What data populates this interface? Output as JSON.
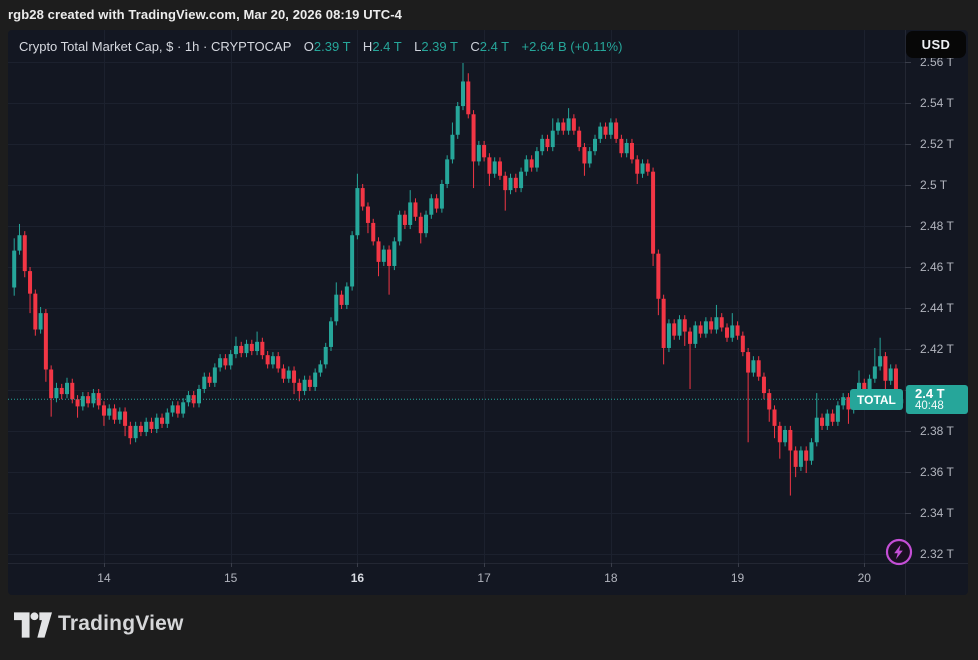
{
  "attribution": "rgb28 created with TradingView.com, Mar 20, 2026 08:19 UTC-4",
  "currency_button": "USD",
  "legend": {
    "title": "Crypto Total Market Cap, $ · 1h · CRYPTOCAP",
    "ohlc": [
      {
        "label": "O",
        "value": "2.39 T"
      },
      {
        "label": "H",
        "value": "2.4 T"
      },
      {
        "label": "L",
        "value": "2.39 T"
      },
      {
        "label": "C",
        "value": "2.4 T"
      }
    ],
    "change": "+2.64 B (+0.11%)"
  },
  "price_label": {
    "symbol": "TOTAL",
    "price": "2.4 T",
    "countdown": "40:48"
  },
  "footer": {
    "brand": "TradingView"
  },
  "colors": {
    "up": "#26a69a",
    "down": "#f23645",
    "grid": "#1c212e",
    "axis_text": "#b2b5be",
    "text_bright": "#d1d4dc",
    "badge": "#26a69a",
    "flash": "#c44fd6",
    "panel_bg": "#131722",
    "frame_bg": "#1d1d1d",
    "separator": "#232733"
  },
  "chart_data": {
    "type": "candlestick",
    "title": "Crypto Total Market Cap",
    "symbol": "CRYPTOCAP:TOTAL",
    "interval": "1h",
    "units": "trillions USD",
    "current_price": 2.3955,
    "current_price_label": "2.4 T",
    "countdown": "40:48",
    "ylim": [
      2.315,
      2.575
    ],
    "grid": true,
    "y_levels": [
      {
        "price": 2.56,
        "label": "2.56 T"
      },
      {
        "price": 2.54,
        "label": "2.54 T"
      },
      {
        "price": 2.52,
        "label": "2.52 T"
      },
      {
        "price": 2.5,
        "label": "2.5 T"
      },
      {
        "price": 2.48,
        "label": "2.48 T"
      },
      {
        "price": 2.46,
        "label": "2.46 T"
      },
      {
        "price": 2.44,
        "label": "2.44 T"
      },
      {
        "price": 2.42,
        "label": "2.42 T"
      },
      {
        "price": 2.4,
        "label": "2.4 T"
      },
      {
        "price": 2.38,
        "label": "2.38 T"
      },
      {
        "price": 2.36,
        "label": "2.36 T"
      },
      {
        "price": 2.34,
        "label": "2.34 T"
      },
      {
        "price": 2.32,
        "label": "2.32 T"
      }
    ],
    "x_ticks": [
      {
        "t": 17,
        "label": "14",
        "bold": false
      },
      {
        "t": 41,
        "label": "15",
        "bold": false
      },
      {
        "t": 65,
        "label": "16",
        "bold": true
      },
      {
        "t": 89,
        "label": "17",
        "bold": false
      },
      {
        "t": 113,
        "label": "18",
        "bold": false
      },
      {
        "t": 137,
        "label": "19",
        "bold": false
      },
      {
        "t": 161,
        "label": "20",
        "bold": false
      }
    ],
    "candles": [
      [
        2.45,
        2.474,
        2.446,
        2.468
      ],
      [
        2.468,
        2.481,
        2.466,
        2.4755
      ],
      [
        2.4755,
        2.4775,
        2.455,
        2.458
      ],
      [
        2.458,
        2.46,
        2.4375,
        2.447
      ],
      [
        2.447,
        2.449,
        2.4265,
        2.4295
      ],
      [
        2.4295,
        2.4405,
        2.4275,
        2.4375
      ],
      [
        2.4375,
        2.4395,
        2.404,
        2.41
      ],
      [
        2.41,
        2.412,
        2.387,
        2.396
      ],
      [
        2.396,
        2.4035,
        2.394,
        2.401
      ],
      [
        2.401,
        2.403,
        2.3955,
        2.398
      ],
      [
        2.398,
        2.406,
        2.396,
        2.4035
      ],
      [
        2.4035,
        2.4055,
        2.3935,
        2.3955
      ],
      [
        2.3955,
        2.3975,
        2.3865,
        2.392
      ],
      [
        2.392,
        2.399,
        2.39,
        2.397
      ],
      [
        2.397,
        2.399,
        2.3915,
        2.3935
      ],
      [
        2.3935,
        2.4005,
        2.3915,
        2.3985
      ],
      [
        2.3985,
        2.4005,
        2.3905,
        2.3925
      ],
      [
        2.3925,
        2.3945,
        2.3825,
        2.3875
      ],
      [
        2.3875,
        2.393,
        2.3855,
        2.391
      ],
      [
        2.391,
        2.393,
        2.3835,
        2.3855
      ],
      [
        2.3855,
        2.3915,
        2.3835,
        2.3895
      ],
      [
        2.3895,
        2.3915,
        2.3775,
        2.3825
      ],
      [
        2.3825,
        2.3845,
        2.3735,
        2.3765
      ],
      [
        2.3765,
        2.3845,
        2.3745,
        2.3825
      ],
      [
        2.3825,
        2.3845,
        2.3775,
        2.3795
      ],
      [
        2.3795,
        2.3865,
        2.3775,
        2.3845
      ],
      [
        2.3845,
        2.3865,
        2.379,
        2.381
      ],
      [
        2.381,
        2.3885,
        2.379,
        2.3865
      ],
      [
        2.3865,
        2.3885,
        2.3815,
        2.3835
      ],
      [
        2.3835,
        2.391,
        2.3815,
        2.389
      ],
      [
        2.389,
        2.3945,
        2.387,
        2.3925
      ],
      [
        2.3925,
        2.3945,
        2.3865,
        2.3885
      ],
      [
        2.3885,
        2.396,
        2.3865,
        2.394
      ],
      [
        2.394,
        2.3995,
        2.392,
        2.3975
      ],
      [
        2.3975,
        2.3995,
        2.3915,
        2.3935
      ],
      [
        2.3935,
        2.4025,
        2.3915,
        2.4005
      ],
      [
        2.4005,
        2.4085,
        2.3985,
        2.4065
      ],
      [
        2.4065,
        2.4085,
        2.4015,
        2.4035
      ],
      [
        2.4035,
        2.413,
        2.4015,
        2.411
      ],
      [
        2.411,
        2.4175,
        2.409,
        2.4155
      ],
      [
        2.4155,
        2.4175,
        2.41,
        2.412
      ],
      [
        2.412,
        2.4195,
        2.41,
        2.4175
      ],
      [
        2.4175,
        2.426,
        2.4155,
        2.4215
      ],
      [
        2.4215,
        2.4235,
        2.416,
        2.418
      ],
      [
        2.418,
        2.4245,
        2.416,
        2.4225
      ],
      [
        2.4225,
        2.4245,
        2.417,
        2.419
      ],
      [
        2.419,
        2.4285,
        2.417,
        2.4235
      ],
      [
        2.4235,
        2.4255,
        2.415,
        2.417
      ],
      [
        2.417,
        2.419,
        2.4105,
        2.4125
      ],
      [
        2.4125,
        2.4185,
        2.4105,
        2.4165
      ],
      [
        2.4165,
        2.4185,
        2.4085,
        2.4105
      ],
      [
        2.4105,
        2.4125,
        2.4035,
        2.4055
      ],
      [
        2.4055,
        2.4115,
        2.4035,
        2.4095
      ],
      [
        2.4095,
        2.4115,
        2.398,
        2.4035
      ],
      [
        2.4035,
        2.4055,
        2.3945,
        2.3995
      ],
      [
        2.3995,
        2.407,
        2.3975,
        2.405
      ],
      [
        2.405,
        2.407,
        2.3995,
        2.4015
      ],
      [
        2.4015,
        2.4105,
        2.3995,
        2.4085
      ],
      [
        2.4085,
        2.4145,
        2.4065,
        2.4125
      ],
      [
        2.4125,
        2.423,
        2.4105,
        2.421
      ],
      [
        2.421,
        2.4355,
        2.419,
        2.4335
      ],
      [
        2.4335,
        2.4525,
        2.4315,
        2.4465
      ],
      [
        2.4465,
        2.4485,
        2.4395,
        2.4415
      ],
      [
        2.4415,
        2.4525,
        2.4395,
        2.4505
      ],
      [
        2.4505,
        2.4775,
        2.4485,
        2.4755
      ],
      [
        2.4755,
        2.5055,
        2.4735,
        2.4985
      ],
      [
        2.4985,
        2.5005,
        2.4875,
        2.4895
      ],
      [
        2.4895,
        2.4915,
        2.4765,
        2.4815
      ],
      [
        2.4815,
        2.4835,
        2.4705,
        2.4725
      ],
      [
        2.4725,
        2.4745,
        2.4555,
        2.4625
      ],
      [
        2.4625,
        2.4705,
        2.4605,
        2.4685
      ],
      [
        2.4685,
        2.4705,
        2.4465,
        2.4605
      ],
      [
        2.4605,
        2.4745,
        2.4585,
        2.4725
      ],
      [
        2.4725,
        2.4875,
        2.4705,
        2.4855
      ],
      [
        2.4855,
        2.4875,
        2.4785,
        2.4805
      ],
      [
        2.4805,
        2.4975,
        2.4785,
        2.4915
      ],
      [
        2.4915,
        2.4935,
        2.4825,
        2.4845
      ],
      [
        2.4845,
        2.4865,
        2.4715,
        2.4765
      ],
      [
        2.4765,
        2.4875,
        2.4745,
        2.4855
      ],
      [
        2.4855,
        2.4955,
        2.4835,
        2.4935
      ],
      [
        2.4935,
        2.4955,
        2.4865,
        2.4885
      ],
      [
        2.4885,
        2.5025,
        2.4865,
        2.5005
      ],
      [
        2.5005,
        2.5145,
        2.4985,
        2.5125
      ],
      [
        2.5125,
        2.5305,
        2.5105,
        2.5245
      ],
      [
        2.5245,
        2.5405,
        2.5225,
        2.5385
      ],
      [
        2.5385,
        2.5595,
        2.5365,
        2.5505
      ],
      [
        2.5505,
        2.5545,
        2.5325,
        2.5345
      ],
      [
        2.5345,
        2.5365,
        2.4985,
        2.5115
      ],
      [
        2.5115,
        2.5215,
        2.5095,
        2.5195
      ],
      [
        2.5195,
        2.5215,
        2.5115,
        2.5135
      ],
      [
        2.5135,
        2.5155,
        2.4995,
        2.5055
      ],
      [
        2.5055,
        2.5135,
        2.5035,
        2.5115
      ],
      [
        2.5115,
        2.5135,
        2.5025,
        2.5045
      ],
      [
        2.5045,
        2.5065,
        2.4875,
        2.4975
      ],
      [
        2.4975,
        2.5055,
        2.4955,
        2.5035
      ],
      [
        2.5035,
        2.5055,
        2.4965,
        2.4985
      ],
      [
        2.4985,
        2.5085,
        2.4965,
        2.5065
      ],
      [
        2.5065,
        2.5145,
        2.5045,
        2.5125
      ],
      [
        2.5125,
        2.5145,
        2.5065,
        2.5085
      ],
      [
        2.5085,
        2.5185,
        2.5065,
        2.5165
      ],
      [
        2.5165,
        2.5245,
        2.5145,
        2.5225
      ],
      [
        2.5225,
        2.5245,
        2.5165,
        2.5185
      ],
      [
        2.5185,
        2.5325,
        2.5165,
        2.5265
      ],
      [
        2.5265,
        2.5325,
        2.5245,
        2.5305
      ],
      [
        2.5305,
        2.5325,
        2.5245,
        2.5265
      ],
      [
        2.5265,
        2.5375,
        2.5245,
        2.5325
      ],
      [
        2.5325,
        2.5345,
        2.5245,
        2.5265
      ],
      [
        2.5265,
        2.5285,
        2.5165,
        2.5185
      ],
      [
        2.5185,
        2.5205,
        2.5045,
        2.5105
      ],
      [
        2.5105,
        2.5185,
        2.5085,
        2.5165
      ],
      [
        2.5165,
        2.5245,
        2.5145,
        2.5225
      ],
      [
        2.5225,
        2.5305,
        2.5205,
        2.5285
      ],
      [
        2.5285,
        2.5305,
        2.5225,
        2.5245
      ],
      [
        2.5245,
        2.5325,
        2.5225,
        2.5305
      ],
      [
        2.5305,
        2.5325,
        2.5205,
        2.5225
      ],
      [
        2.5225,
        2.5245,
        2.5135,
        2.5155
      ],
      [
        2.5155,
        2.5225,
        2.5135,
        2.5205
      ],
      [
        2.5205,
        2.5225,
        2.5105,
        2.5125
      ],
      [
        2.5125,
        2.5145,
        2.5005,
        2.5055
      ],
      [
        2.5055,
        2.5125,
        2.5035,
        2.5105
      ],
      [
        2.5105,
        2.5125,
        2.5045,
        2.5065
      ],
      [
        2.5065,
        2.5085,
        2.4605,
        2.4665
      ],
      [
        2.4665,
        2.4685,
        2.4365,
        2.4445
      ],
      [
        2.4445,
        2.4465,
        2.4125,
        2.4205
      ],
      [
        2.4205,
        2.4345,
        2.4185,
        2.4325
      ],
      [
        2.4325,
        2.4345,
        2.4245,
        2.4265
      ],
      [
        2.4265,
        2.4365,
        2.4245,
        2.4345
      ],
      [
        2.4345,
        2.4365,
        2.4215,
        2.4285
      ],
      [
        2.4285,
        2.4305,
        2.4005,
        2.4225
      ],
      [
        2.4225,
        2.4335,
        2.4205,
        2.4315
      ],
      [
        2.4315,
        2.4335,
        2.4255,
        2.4275
      ],
      [
        2.4275,
        2.4355,
        2.4255,
        2.4335
      ],
      [
        2.4335,
        2.4355,
        2.4275,
        2.4295
      ],
      [
        2.4295,
        2.4415,
        2.4275,
        2.4355
      ],
      [
        2.4355,
        2.4375,
        2.4285,
        2.4305
      ],
      [
        2.4305,
        2.4325,
        2.4235,
        2.4255
      ],
      [
        2.4255,
        2.4375,
        2.4235,
        2.4315
      ],
      [
        2.4315,
        2.4335,
        2.4245,
        2.4265
      ],
      [
        2.4265,
        2.4285,
        2.4165,
        2.4185
      ],
      [
        2.4185,
        2.4205,
        2.3745,
        2.4085
      ],
      [
        2.4085,
        2.4165,
        2.4065,
        2.4145
      ],
      [
        2.4145,
        2.4165,
        2.4045,
        2.4065
      ],
      [
        2.4065,
        2.4085,
        2.3955,
        2.3985
      ],
      [
        2.3985,
        2.4005,
        2.3845,
        2.3905
      ],
      [
        2.3905,
        2.3925,
        2.3765,
        2.3825
      ],
      [
        2.3825,
        2.3845,
        2.3665,
        2.3745
      ],
      [
        2.3745,
        2.3825,
        2.3725,
        2.3805
      ],
      [
        2.3805,
        2.3825,
        2.3485,
        2.3705
      ],
      [
        2.3705,
        2.3725,
        2.3575,
        2.3625
      ],
      [
        2.3625,
        2.3725,
        2.3605,
        2.3705
      ],
      [
        2.3705,
        2.3725,
        2.3595,
        2.3655
      ],
      [
        2.3655,
        2.3765,
        2.3635,
        2.3745
      ],
      [
        2.3745,
        2.3985,
        2.3725,
        2.3865
      ],
      [
        2.3865,
        2.3885,
        2.3805,
        2.3825
      ],
      [
        2.3825,
        2.3905,
        2.3805,
        2.3885
      ],
      [
        2.3885,
        2.3905,
        2.3825,
        2.3845
      ],
      [
        2.3845,
        2.3945,
        2.3825,
        2.3925
      ],
      [
        2.3925,
        2.3985,
        2.3905,
        2.3965
      ],
      [
        2.3965,
        2.3985,
        2.3835,
        2.3905
      ],
      [
        2.3905,
        2.4005,
        2.3885,
        2.3985
      ],
      [
        2.3985,
        2.4095,
        2.3965,
        2.4035
      ],
      [
        2.4035,
        2.4055,
        2.3975,
        2.3995
      ],
      [
        2.3995,
        2.4075,
        2.3975,
        2.4055
      ],
      [
        2.4055,
        2.4205,
        2.4035,
        2.4115
      ],
      [
        2.4115,
        2.4255,
        2.4095,
        2.4165
      ],
      [
        2.4165,
        2.4185,
        2.3975,
        2.4045
      ],
      [
        2.4045,
        2.4125,
        2.4025,
        2.4105
      ],
      [
        2.4105,
        2.4125,
        2.3905,
        2.3935
      ],
      [
        2.3935,
        2.3995,
        2.3905,
        2.3955
      ]
    ]
  }
}
